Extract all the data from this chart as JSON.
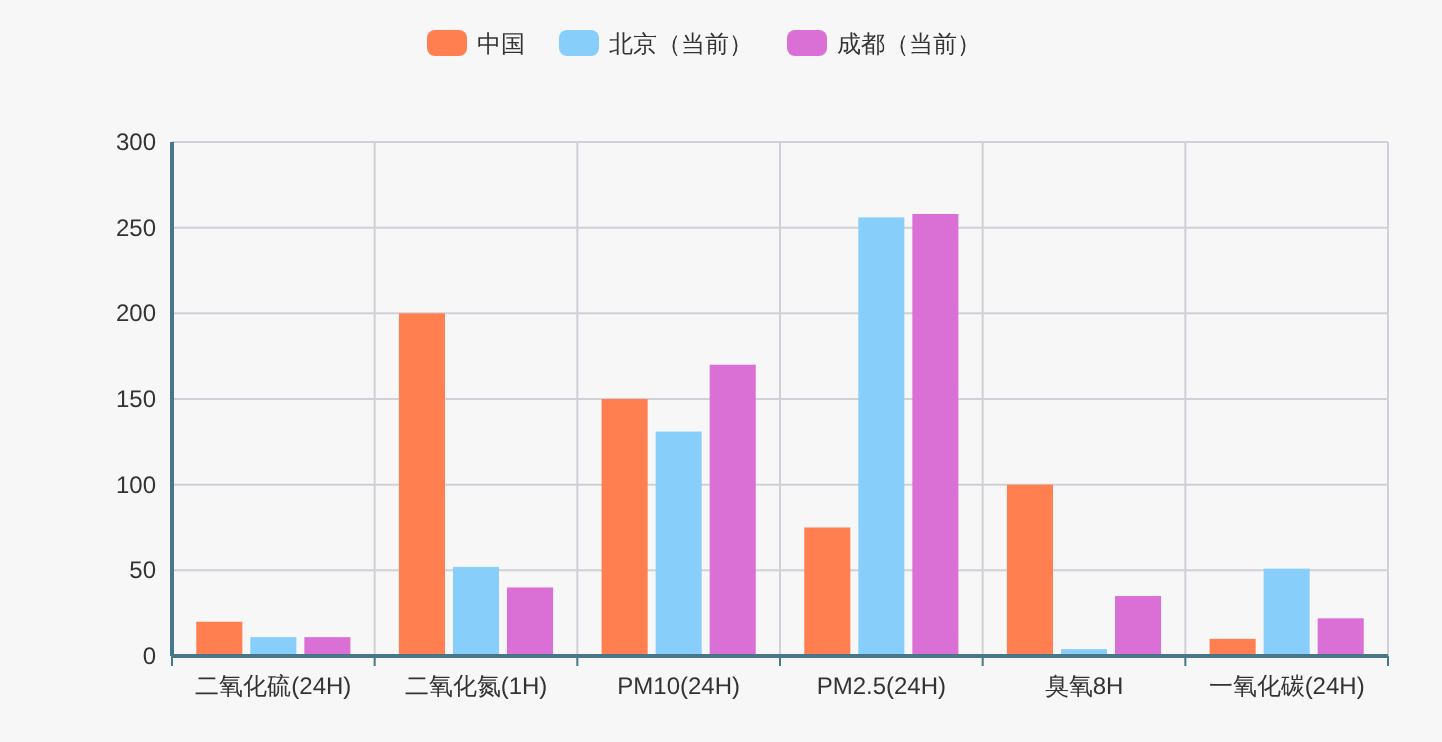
{
  "chart_data": {
    "type": "bar",
    "categories": [
      "二氧化硫(24H)",
      "二氧化氮(1H)",
      "PM10(24H)",
      "PM2.5(24H)",
      "臭氧8H",
      "一氧化碳(24H)"
    ],
    "series": [
      {
        "name": "中国",
        "color": "#ff7f50",
        "values": [
          20,
          200,
          150,
          75,
          100,
          10
        ]
      },
      {
        "name": "北京（当前）",
        "color": "#87cefa",
        "values": [
          11,
          52,
          131,
          256,
          4,
          51
        ]
      },
      {
        "name": "成都（当前）",
        "color": "#da70d6",
        "values": [
          11,
          40,
          170,
          258,
          35,
          22
        ]
      }
    ],
    "ylim": [
      0,
      300
    ],
    "yticks": [
      0,
      50,
      100,
      150,
      200,
      250,
      300
    ],
    "grid": true,
    "legend": "top"
  }
}
